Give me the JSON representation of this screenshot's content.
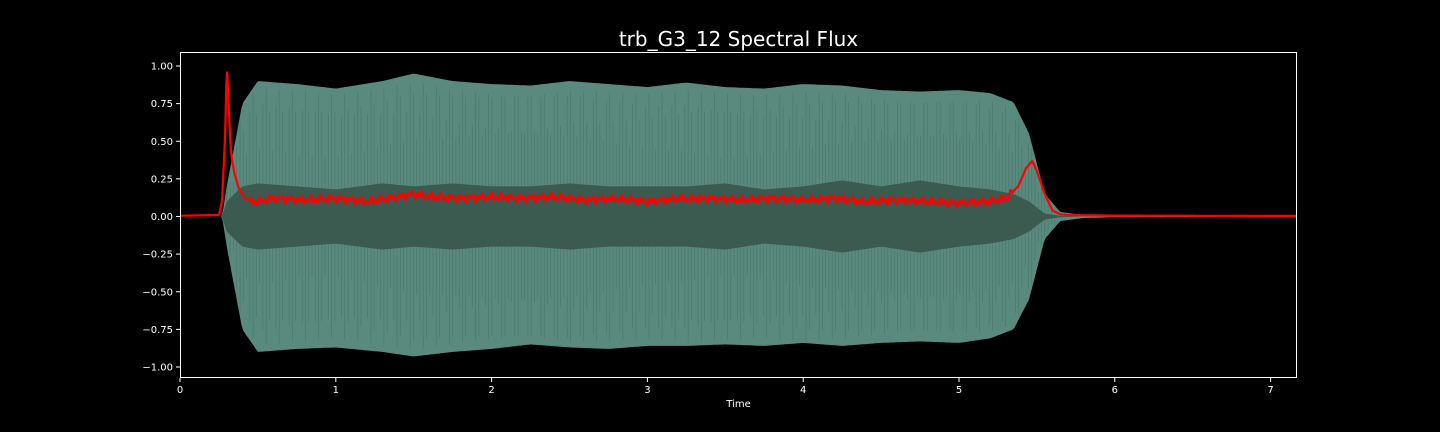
{
  "chart_data": {
    "type": "area",
    "title": "trb_G3_12 Spectral Flux",
    "xlabel": "Time",
    "ylabel": "",
    "xlim": [
      0,
      7.17
    ],
    "ylim": [
      -1.07,
      1.1
    ],
    "xticks": [
      0,
      1,
      2,
      3,
      4,
      5,
      6,
      7
    ],
    "xtick_labels": [
      "0",
      "1",
      "2",
      "3",
      "4",
      "5",
      "6",
      "7"
    ],
    "yticks": [
      1.0,
      0.75,
      0.5,
      0.25,
      0.0,
      -0.25,
      -0.5,
      -0.75,
      -1.0
    ],
    "ytick_labels": [
      "1.00",
      "0.75",
      "0.50",
      "0.25",
      "0.00",
      "−0.25",
      "−0.50",
      "−0.75",
      "−1.00"
    ],
    "grid": false,
    "series": [
      {
        "kind": "waveform-envelope",
        "color": "#5a8a7e",
        "inner_color": "#3b5a50",
        "x": [
          0,
          0.27,
          0.3,
          0.4,
          0.5,
          0.75,
          1.0,
          1.3,
          1.5,
          1.75,
          2.0,
          2.25,
          2.5,
          2.75,
          3.0,
          3.25,
          3.5,
          3.75,
          4.0,
          4.25,
          4.5,
          4.75,
          5.0,
          5.2,
          5.35,
          5.45,
          5.55,
          5.65,
          5.8,
          6.0,
          7.17
        ],
        "upper": [
          0,
          0,
          0.2,
          0.75,
          0.9,
          0.88,
          0.85,
          0.9,
          0.95,
          0.9,
          0.88,
          0.87,
          0.9,
          0.88,
          0.86,
          0.89,
          0.86,
          0.85,
          0.88,
          0.87,
          0.84,
          0.83,
          0.84,
          0.82,
          0.76,
          0.55,
          0.15,
          0.03,
          0.01,
          0.005,
          0
        ],
        "lower": [
          0,
          0,
          -0.2,
          -0.75,
          -0.9,
          -0.88,
          -0.87,
          -0.9,
          -0.93,
          -0.9,
          -0.88,
          -0.85,
          -0.87,
          -0.88,
          -0.86,
          -0.86,
          -0.85,
          -0.86,
          -0.84,
          -0.86,
          -0.84,
          -0.83,
          -0.84,
          -0.81,
          -0.75,
          -0.55,
          -0.15,
          -0.03,
          -0.01,
          -0.005,
          0
        ],
        "inner_upper": [
          0,
          0,
          0.1,
          0.2,
          0.22,
          0.2,
          0.18,
          0.22,
          0.2,
          0.22,
          0.2,
          0.2,
          0.22,
          0.2,
          0.2,
          0.2,
          0.22,
          0.18,
          0.2,
          0.24,
          0.2,
          0.24,
          0.2,
          0.18,
          0.15,
          0.1,
          0.02,
          0.005,
          0,
          0,
          0
        ],
        "inner_lower": [
          0,
          0,
          -0.1,
          -0.2,
          -0.22,
          -0.2,
          -0.18,
          -0.22,
          -0.2,
          -0.22,
          -0.2,
          -0.2,
          -0.22,
          -0.2,
          -0.2,
          -0.2,
          -0.22,
          -0.18,
          -0.2,
          -0.24,
          -0.2,
          -0.24,
          -0.2,
          -0.18,
          -0.15,
          -0.1,
          -0.02,
          -0.005,
          0,
          0,
          0
        ]
      },
      {
        "kind": "line",
        "color": "#ff0000",
        "x": [
          0,
          0.25,
          0.27,
          0.29,
          0.3,
          0.31,
          0.32,
          0.33,
          0.35,
          0.38,
          0.42,
          0.45,
          0.5,
          0.6,
          0.8,
          1.0,
          1.2,
          1.4,
          1.5,
          1.6,
          1.8,
          2.0,
          2.2,
          2.4,
          2.6,
          2.8,
          3.0,
          3.2,
          3.4,
          3.6,
          3.8,
          4.0,
          4.2,
          4.4,
          4.6,
          4.8,
          5.0,
          5.2,
          5.3,
          5.38,
          5.43,
          5.47,
          5.5,
          5.55,
          5.6,
          5.65,
          5.7,
          5.8,
          6.0,
          6.5,
          7.0,
          7.17
        ],
        "y": [
          0.005,
          0.01,
          0.1,
          0.55,
          1.0,
          0.8,
          0.55,
          0.4,
          0.28,
          0.18,
          0.12,
          0.1,
          0.1,
          0.12,
          0.11,
          0.12,
          0.1,
          0.13,
          0.15,
          0.13,
          0.12,
          0.13,
          0.12,
          0.13,
          0.11,
          0.12,
          0.1,
          0.12,
          0.12,
          0.11,
          0.12,
          0.11,
          0.12,
          0.1,
          0.11,
          0.1,
          0.09,
          0.1,
          0.12,
          0.2,
          0.32,
          0.37,
          0.3,
          0.15,
          0.04,
          0.015,
          0.01,
          0.008,
          0.006,
          0.005,
          0.004,
          0.004
        ]
      }
    ]
  }
}
